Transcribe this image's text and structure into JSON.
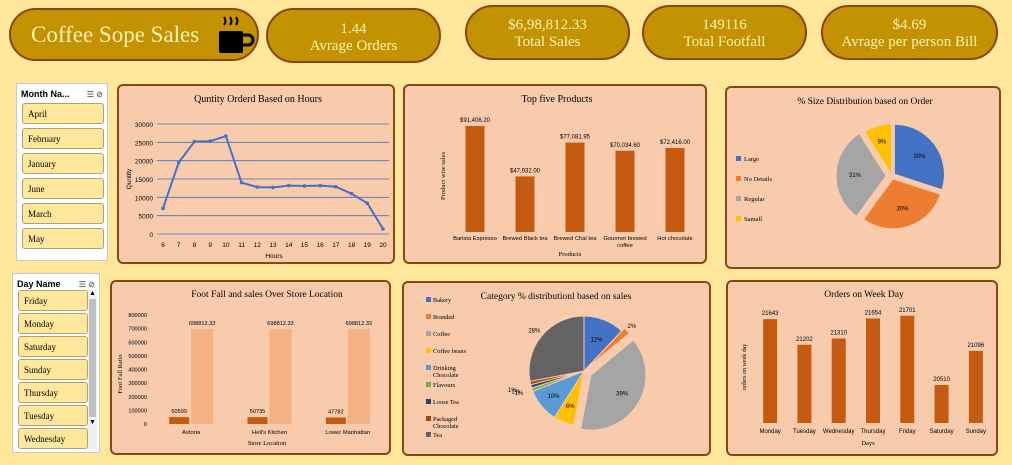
{
  "header": {
    "title": "Coffee Sope Sales",
    "kpis": [
      {
        "value": "1.44",
        "label": "Avrage Orders"
      },
      {
        "value": "$6,98,812.33",
        "label": "Total Sales"
      },
      {
        "value": "149116",
        "label": "Total Footfall"
      },
      {
        "value": "$4.69",
        "label": "Avrage per person Bill"
      }
    ]
  },
  "slicers": {
    "month": {
      "title": "Month Na...",
      "items": [
        "April",
        "February",
        "January",
        "June",
        "March",
        "May"
      ]
    },
    "day": {
      "title": "Day Name",
      "items": [
        "Friday",
        "Monday",
        "Saturday",
        "Sunday",
        "Thursday",
        "Tuesday",
        "Wednesday"
      ]
    }
  },
  "colors": {
    "accent": "#C55A11",
    "line": "#4472C4",
    "card": "#F8CBAD",
    "bg": "#FFE79C",
    "gold": "#C39200"
  },
  "charts": {
    "hours": {
      "title": "Quntity Orderd Based on Hours",
      "xlabel": "Hours",
      "ylabel": "Quntity",
      "y_ticks": [
        "30000",
        "25000",
        "20000",
        "15000",
        "10000",
        "5000",
        "0"
      ],
      "x_ticks": [
        "6",
        "7",
        "8",
        "9",
        "10",
        "11",
        "12",
        "13",
        "14",
        "15",
        "16",
        "17",
        "18",
        "19",
        "20"
      ]
    },
    "top_products": {
      "title": "Top five Products",
      "xlabel": "Products",
      "ylabel": "Product wise sales",
      "categories": [
        "Barista Espresso",
        "Brewed Black tea",
        "Brewed Chai tea",
        "Gourmet brewed coffee",
        "Hot chocolate"
      ],
      "labels": [
        "$91,406.20",
        "$47,932.00",
        "$77,081.95",
        "$70,034.60",
        "$72,416.00"
      ]
    },
    "size": {
      "title": "% Size Distribution based on Order",
      "legend": [
        "Large",
        "No Details",
        "Regular",
        "Samall"
      ],
      "labels": [
        "30%",
        "30%",
        "31%",
        "9%"
      ]
    },
    "location": {
      "title": "Foot Fall and sales Over Store Location",
      "xlabel": "Store Location",
      "ylabel": "Foot Fall Ratio",
      "y_ticks": [
        "800000",
        "700000",
        "600000",
        "500000",
        "400000",
        "300000",
        "200000",
        "100000",
        "0"
      ],
      "categories": [
        "Astoria",
        "Hell's Kitchen",
        "Lower Manhattan"
      ],
      "footfall_labels": [
        "50599",
        "50735",
        "47782"
      ],
      "sales_labels": [
        "698812.33",
        "698812.33",
        "698812.33"
      ]
    },
    "category": {
      "title": "Category %  distributionl based on sales",
      "legend": [
        "Bakery",
        "Branded",
        "Coffee",
        "Coffee beans",
        "Drinking Chocolate",
        "Flavours",
        "Loose Tea",
        "Packaged Chocolate",
        "Tea"
      ],
      "labels": [
        "12%",
        "2%",
        "39%",
        "6%",
        "10%",
        "1%",
        "1%",
        "1%",
        "28%"
      ]
    },
    "weekday": {
      "title": "Orders on Week Day",
      "xlabel": "Days",
      "ylabel": "orders on week day",
      "categories": [
        "Monday",
        "Tuesday",
        "Wednesday",
        "Thursday",
        "Friday",
        "Saturday",
        "Sunday"
      ],
      "labels": [
        "21643",
        "21202",
        "21310",
        "21654",
        "21701",
        "20510",
        "21096"
      ]
    }
  },
  "chart_data": [
    {
      "type": "line",
      "title": "Quntity Orderd Based on Hours",
      "xlabel": "Hours",
      "ylabel": "Quntity",
      "x": [
        6,
        7,
        8,
        9,
        10,
        11,
        12,
        13,
        14,
        15,
        16,
        17,
        18,
        19,
        20
      ],
      "values": [
        7000,
        19500,
        25200,
        25300,
        26700,
        14000,
        12800,
        12700,
        13200,
        13100,
        13200,
        12900,
        11000,
        8400,
        1400
      ],
      "ylim": [
        0,
        30000
      ]
    },
    {
      "type": "bar",
      "title": "Top five Products",
      "xlabel": "Products",
      "ylabel": "Product wise sales",
      "categories": [
        "Barista Espresso",
        "Brewed Black tea",
        "Brewed Chai tea",
        "Gourmet brewed coffee",
        "Hot chocolate"
      ],
      "values": [
        91406.2,
        47932.0,
        77081.95,
        70034.6,
        72416.0
      ],
      "ylim": [
        0,
        100000
      ]
    },
    {
      "type": "pie",
      "title": "% Size Distribution based on Order",
      "categories": [
        "Large",
        "No Details",
        "Regular",
        "Samall"
      ],
      "values": [
        30,
        30,
        31,
        9
      ]
    },
    {
      "type": "bar",
      "title": "Foot Fall and sales Over Store Location",
      "xlabel": "Store Location",
      "ylabel": "Foot Fall Ratio",
      "categories": [
        "Astoria",
        "Hell's Kitchen",
        "Lower Manhattan"
      ],
      "series": [
        {
          "values": [
            50599,
            50735,
            47782
          ]
        },
        {
          "values": [
            698812.33,
            698812.33,
            698812.33
          ]
        }
      ],
      "ylim": [
        0,
        800000
      ]
    },
    {
      "type": "pie",
      "title": "Category %  distributionl based on sales",
      "categories": [
        "Bakery",
        "Branded",
        "Coffee",
        "Coffee beans",
        "Drinking Chocolate",
        "Flavours",
        "Loose Tea",
        "Packaged Chocolate",
        "Tea"
      ],
      "values": [
        12,
        2,
        39,
        6,
        10,
        1,
        1,
        1,
        28
      ]
    },
    {
      "type": "bar",
      "title": "Orders on Week Day",
      "xlabel": "Days",
      "ylabel": "orders on week day",
      "categories": [
        "Monday",
        "Tuesday",
        "Wednesday",
        "Thursday",
        "Friday",
        "Saturday",
        "Sunday"
      ],
      "values": [
        21643,
        21202,
        21310,
        21654,
        21701,
        20510,
        21096
      ]
    }
  ]
}
